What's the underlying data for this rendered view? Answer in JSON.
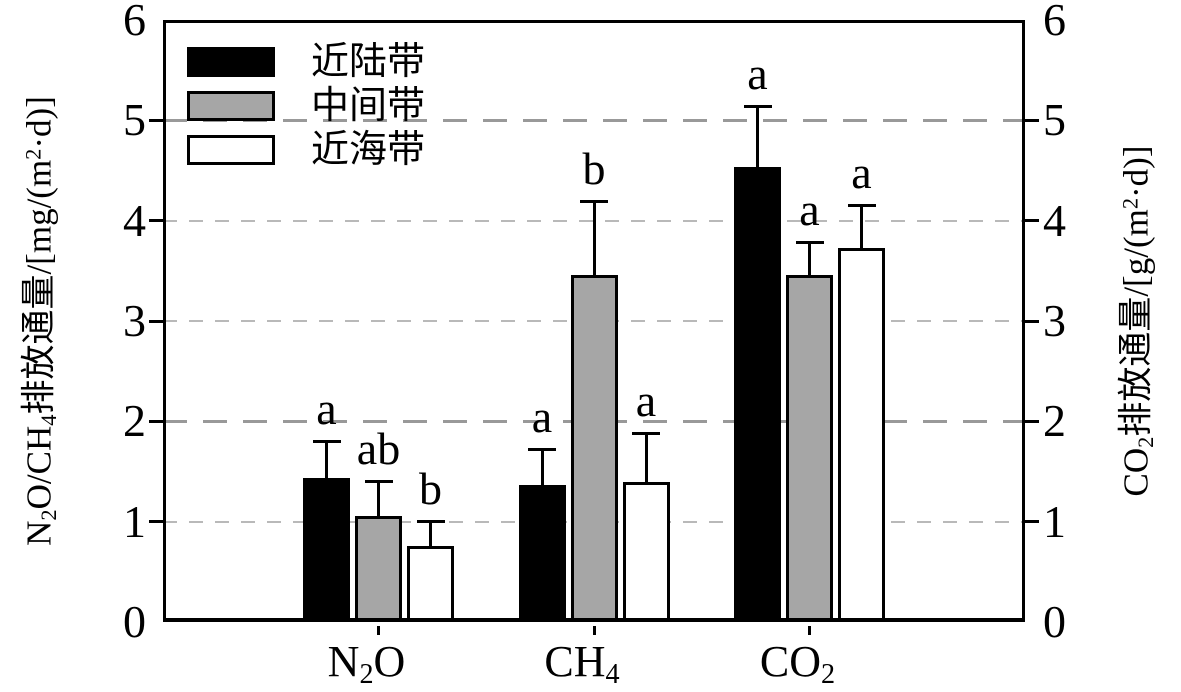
{
  "chart_data": {
    "type": "bar",
    "title": "",
    "categories": [
      "N₂O",
      "CH₄",
      "CO₂"
    ],
    "ylabel_left": "N₂O/CH₄排放通量/[mg/(m²·d)]",
    "ylabel_right": "CO₂排放通量/[g/(m²·d)]",
    "ylim": [
      0,
      6
    ],
    "yticks": [
      0,
      1,
      2,
      3,
      4,
      5,
      6
    ],
    "gridlines": [
      1,
      2,
      3,
      4,
      5
    ],
    "grid_style": "dashed",
    "legend_position": "top-left",
    "bar_colors": {
      "black": "#000000",
      "gray": "#a6a6a6",
      "white": "#ffffff"
    },
    "series": [
      {
        "name": "近陆带",
        "color": "#000000",
        "values": [
          1.44,
          1.37,
          4.54
        ],
        "errors": [
          0.37,
          0.36,
          0.61
        ],
        "sig_letters": [
          "a",
          "a",
          "a"
        ]
      },
      {
        "name": "中间带",
        "color": "#a6a6a6",
        "values": [
          1.06,
          3.46,
          3.46
        ],
        "errors": [
          0.36,
          0.75,
          0.34
        ],
        "sig_letters": [
          "ab",
          "b",
          "a"
        ]
      },
      {
        "name": "近海带",
        "color": "#ffffff",
        "values": [
          0.76,
          1.4,
          3.73
        ],
        "errors": [
          0.26,
          0.49,
          0.44
        ],
        "sig_letters": [
          "b",
          "a",
          "a"
        ]
      }
    ]
  }
}
